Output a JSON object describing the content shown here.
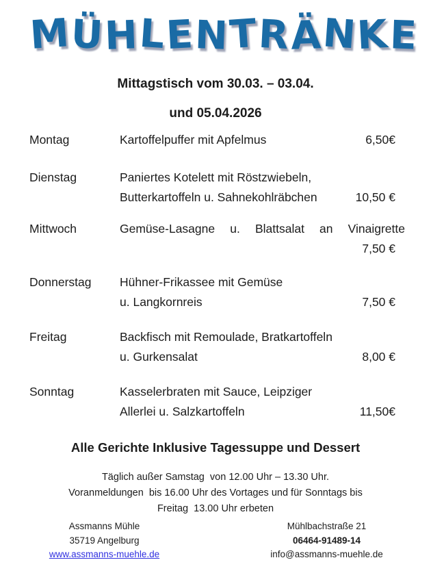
{
  "logo": {
    "text": "MÜHLENTRÄNKE"
  },
  "header": {
    "line1": "Mittagstisch vom 30.03. – 03.04.",
    "line2": "und 05.04.2026"
  },
  "menu": {
    "rows": [
      {
        "day": "Montag",
        "line1": "Kartoffelpuffer mit Apfelmus",
        "price1": "6,50€"
      },
      {
        "day": "Dienstag",
        "line1": "Paniertes Kotelett mit Röstzwiebeln,",
        "line2": "Butterkartoffeln u. Sahnekohlräbchen",
        "price2": "10,50 €"
      },
      {
        "day": "Mittwoch",
        "line1": "Gemüse-Lasagne u. Blattsalat an Vinaigrette",
        "line2": "",
        "price2": "7,50 €"
      },
      {
        "day": "Donnerstag",
        "line1": "Hühner-Frikassee mit Gemüse",
        "line2": "u. Langkornreis",
        "price2": "7,50 €"
      },
      {
        "day": "Freitag",
        "line1": "Backfisch mit Remoulade, Bratkartoffeln",
        "line2": "u. Gurkensalat",
        "price2": "8,00 €"
      },
      {
        "day": "Sonntag",
        "line1": "Kasselerbraten mit Sauce, Leipziger",
        "line2": "Allerlei u. Salzkartoffeln",
        "price2": "11,50€"
      }
    ]
  },
  "note": {
    "text": "Alle Gerichte Inklusive Tagessuppe und Dessert"
  },
  "hours": {
    "line1": "Täglich außer Samstag  von 12.00 Uhr – 13.30 Uhr.",
    "line2": "Voranmeldungen  bis 16.00 Uhr des Vortages und für Sonntags bis",
    "line3": "Freitag  13.00 Uhr erbeten"
  },
  "footer": {
    "left": {
      "name": "Assmanns Mühle",
      "city": "35719 Angelburg",
      "website": "www.assmanns-muehle.de"
    },
    "right": {
      "street": "Mühlbachstraße 21",
      "phone": "06464-91489-14",
      "email": "info@assmanns-muehle.de"
    }
  },
  "colors": {
    "title_blue": "#1a6ba5",
    "link_blue": "#3030e0",
    "text": "#1c1c1c"
  }
}
